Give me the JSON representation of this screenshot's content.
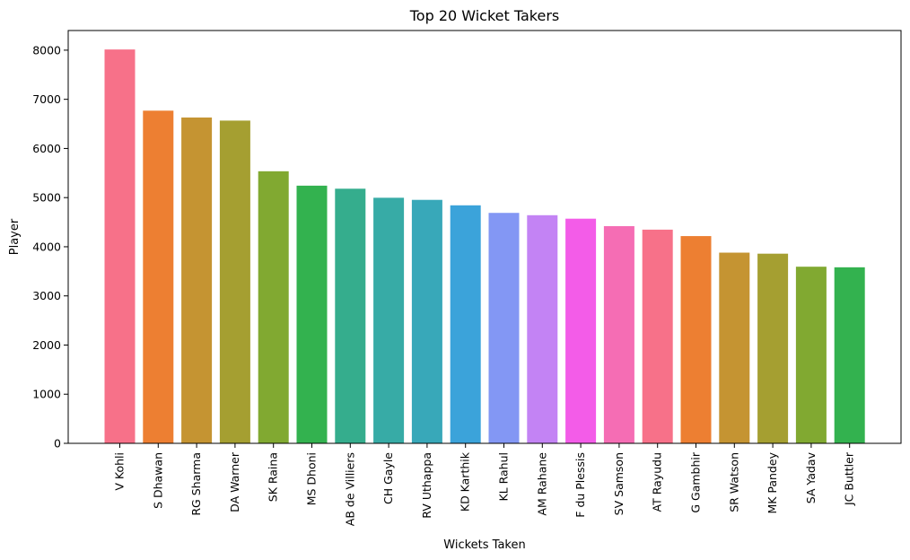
{
  "chart_data": {
    "type": "bar",
    "title": "Top 20 Wicket Takers",
    "xlabel": "Wickets Taken",
    "ylabel": "Player",
    "ylim": [
      0,
      8400
    ],
    "yticks": [
      0,
      1000,
      2000,
      3000,
      4000,
      5000,
      6000,
      7000,
      8000
    ],
    "categories": [
      "V Kohli",
      "S Dhawan",
      "RG Sharma",
      "DA Warner",
      "SK Raina",
      "MS Dhoni",
      "AB de Villiers",
      "CH Gayle",
      "RV Uthappa",
      "KD Karthik",
      "KL Rahul",
      "AM Rahane",
      "F du Plessis",
      "SV Samson",
      "AT Rayudu",
      "G Gambhir",
      "SR Watson",
      "MK Pandey",
      "SA Yadav",
      "JC Buttler"
    ],
    "values": [
      8014,
      6769,
      6630,
      6567,
      5536,
      5243,
      5181,
      4997,
      4954,
      4843,
      4689,
      4642,
      4571,
      4419,
      4348,
      4217,
      3880,
      3859,
      3594,
      3582
    ],
    "colors": [
      "#f77189",
      "#ed7f32",
      "#c59432",
      "#a59f31",
      "#81a931",
      "#33b24f",
      "#35ad8d",
      "#37aba6",
      "#38a8b9",
      "#3ba3da",
      "#8397f4",
      "#c383f4",
      "#f35ce8",
      "#f56db4",
      "#f77189",
      "#ed7f32",
      "#c59432",
      "#a59f31",
      "#81a931",
      "#33b24f"
    ],
    "grid": false,
    "legend": "none"
  }
}
